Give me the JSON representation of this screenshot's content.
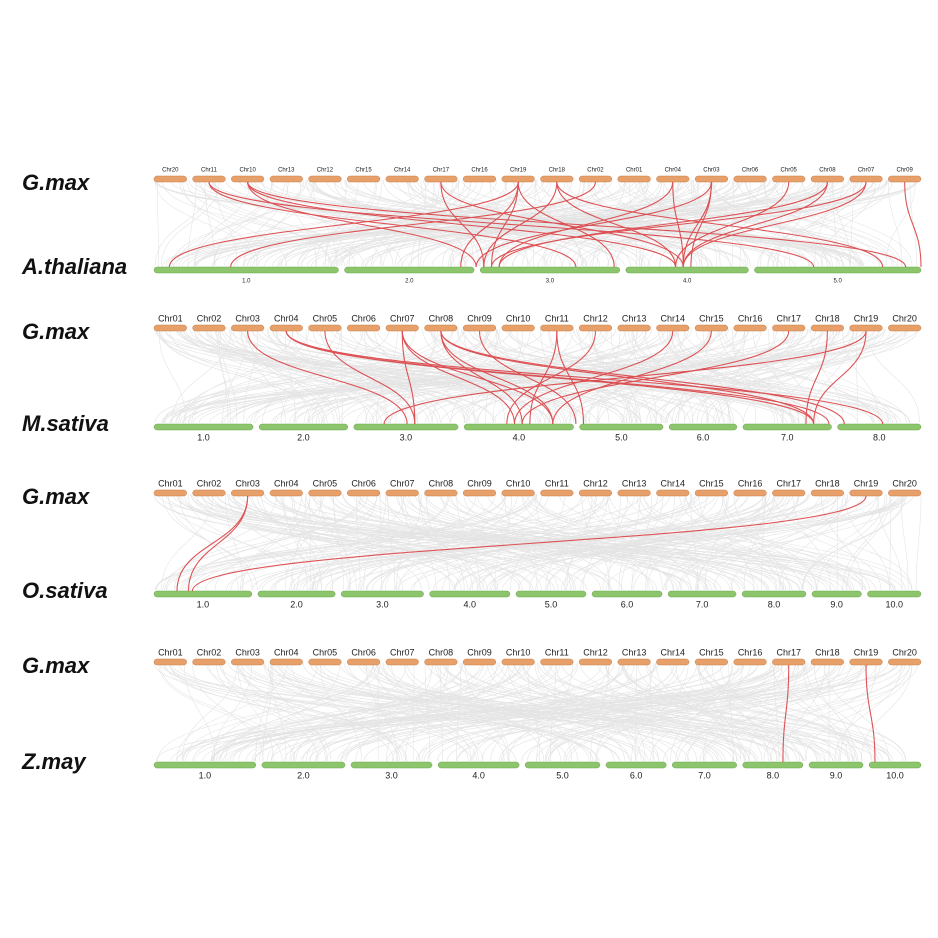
{
  "panels": [
    {
      "top_species": "G.max",
      "bottom_species": "A.thaliana",
      "top_chromosomes": [
        "Chr20",
        "Chr11",
        "Chr10",
        "Chr13",
        "Chr12",
        "Chr15",
        "Chr14",
        "Chr17",
        "Chr16",
        "Chr19",
        "Chr18",
        "Chr02",
        "Chr01",
        "Chr04",
        "Chr03",
        "Chr06",
        "Chr05",
        "Chr08",
        "Chr07",
        "Chr09"
      ],
      "bottom_chromosomes": [
        "1.0",
        "2.0",
        "3.0",
        "4.0",
        "5.0"
      ]
    },
    {
      "top_species": "G.max",
      "bottom_species": "M.sativa",
      "top_chromosomes": [
        "Chr01",
        "Chr02",
        "Chr03",
        "Chr04",
        "Chr05",
        "Chr06",
        "Chr07",
        "Chr08",
        "Chr09",
        "Chr10",
        "Chr11",
        "Chr12",
        "Chr13",
        "Chr14",
        "Chr15",
        "Chr16",
        "Chr17",
        "Chr18",
        "Chr19",
        "Chr20"
      ],
      "bottom_chromosomes": [
        "1.0",
        "2.0",
        "3.0",
        "4.0",
        "5.0",
        "6.0",
        "7.0",
        "8.0"
      ]
    },
    {
      "top_species": "G.max",
      "bottom_species": "O.sativa",
      "top_chromosomes": [
        "Chr01",
        "Chr02",
        "Chr03",
        "Chr04",
        "Chr05",
        "Chr06",
        "Chr07",
        "Chr08",
        "Chr09",
        "Chr10",
        "Chr11",
        "Chr12",
        "Chr13",
        "Chr14",
        "Chr15",
        "Chr16",
        "Chr17",
        "Chr18",
        "Chr19",
        "Chr20"
      ],
      "bottom_chromosomes": [
        "1.0",
        "2.0",
        "3.0",
        "4.0",
        "5.0",
        "6.0",
        "7.0",
        "8.0",
        "9.0",
        "10.0"
      ]
    },
    {
      "top_species": "G.max",
      "bottom_species": "Z.may",
      "top_chromosomes": [
        "Chr01",
        "Chr02",
        "Chr03",
        "Chr04",
        "Chr05",
        "Chr06",
        "Chr07",
        "Chr08",
        "Chr09",
        "Chr10",
        "Chr11",
        "Chr12",
        "Chr13",
        "Chr14",
        "Chr15",
        "Chr16",
        "Chr17",
        "Chr18",
        "Chr19",
        "Chr20"
      ],
      "bottom_chromosomes": [
        "1.0",
        "2.0",
        "3.0",
        "4.0",
        "5.0",
        "6.0",
        "7.0",
        "8.0",
        "9.0",
        "10.0"
      ]
    }
  ]
}
